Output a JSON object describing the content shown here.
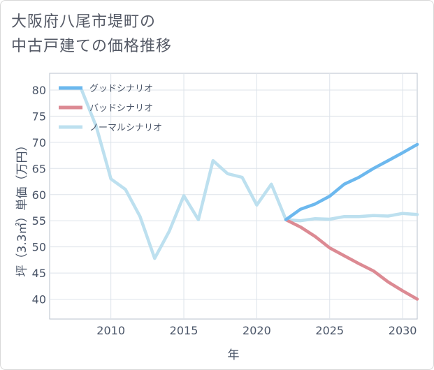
{
  "title": {
    "line1": "大阪府八尾市堤町の",
    "line2": "中古戸建ての価格推移"
  },
  "colors": {
    "good": "#6cb8ee",
    "bad": "#dc8a93",
    "normal": "#bde0ef",
    "grid": "#dde3ea",
    "axis": "#b9c2cc"
  },
  "chart_data": {
    "type": "line",
    "title": "大阪府八尾市堤町の中古戸建ての価格推移",
    "xlabel": "年",
    "ylabel": "坪（3.3㎡）単価（万円）",
    "xlim": [
      2005.8,
      2031.0
    ],
    "ylim": [
      36.2,
      83.2
    ],
    "xticks": [
      2010,
      2015,
      2020,
      2025,
      2030
    ],
    "yticks": [
      40,
      45,
      50,
      55,
      60,
      65,
      70,
      75,
      80
    ],
    "legend_position": "top-left",
    "series": [
      {
        "key": "good",
        "name": "グッドシナリオ",
        "x": [
          2022,
          2023,
          2024,
          2025,
          2026,
          2027,
          2028,
          2029,
          2030,
          2031
        ],
        "y": [
          55.2,
          57.2,
          58.2,
          59.7,
          62.0,
          63.3,
          65.0,
          66.5,
          68.0,
          69.6
        ]
      },
      {
        "key": "bad",
        "name": "バッドシナリオ",
        "x": [
          2022,
          2023,
          2024,
          2025,
          2026,
          2027,
          2028,
          2029,
          2030,
          2031
        ],
        "y": [
          55.2,
          53.8,
          52.0,
          49.8,
          48.3,
          46.8,
          45.4,
          43.3,
          41.6,
          40.0
        ]
      },
      {
        "key": "normal",
        "name": "ノーマルシナリオ",
        "x": [
          2008,
          2009,
          2010,
          2011,
          2012,
          2013,
          2014,
          2015,
          2016,
          2017,
          2018,
          2019,
          2020,
          2021,
          2022,
          2023,
          2024,
          2025,
          2026,
          2027,
          2028,
          2029,
          2030,
          2031
        ],
        "y": [
          80.0,
          73.0,
          63.0,
          61.0,
          55.8,
          47.8,
          53.0,
          59.8,
          55.2,
          66.5,
          64.0,
          63.3,
          58.0,
          62.0,
          55.2,
          55.0,
          55.4,
          55.3,
          55.8,
          55.8,
          56.0,
          55.9,
          56.4,
          56.2
        ]
      }
    ]
  }
}
